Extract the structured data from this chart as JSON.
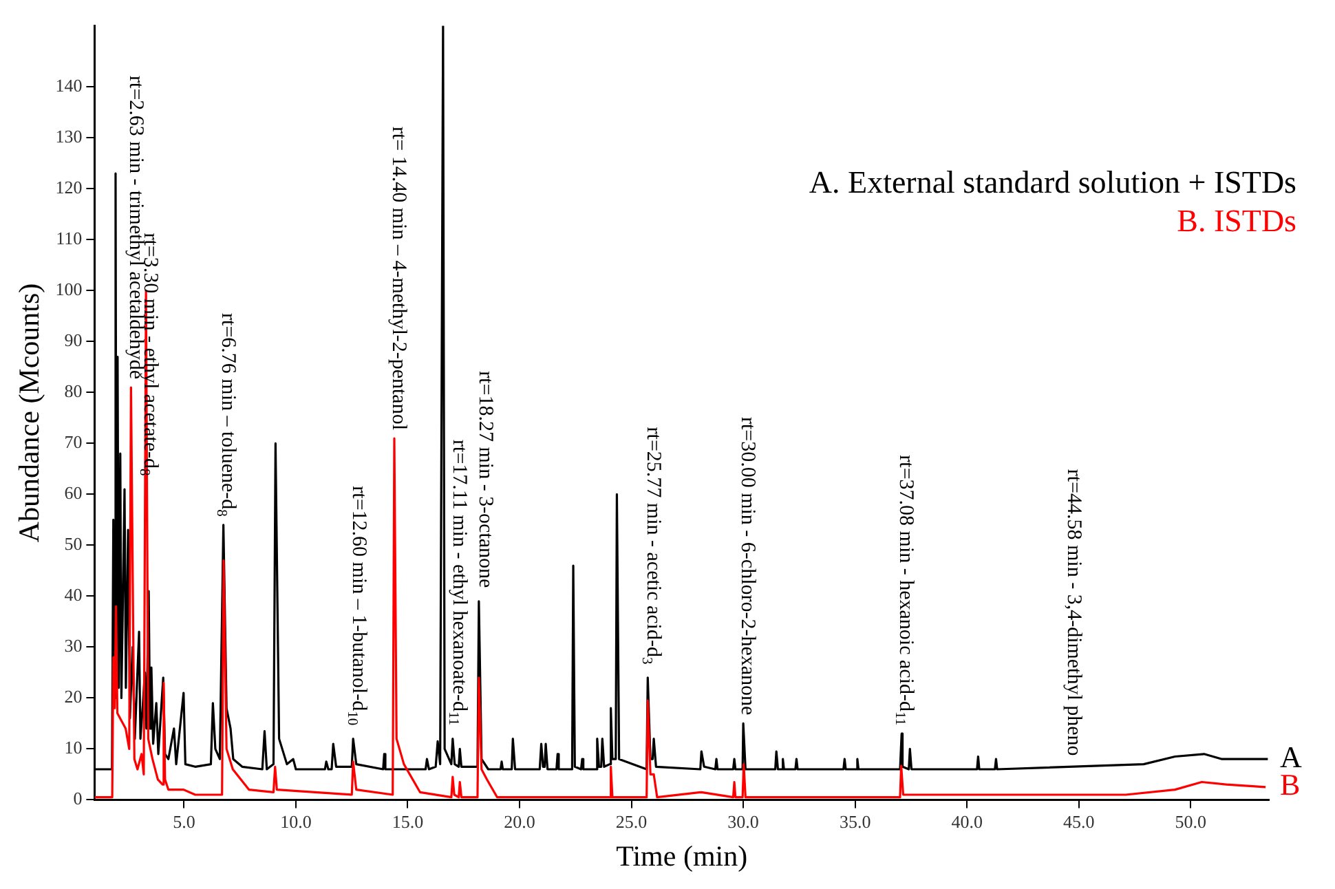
{
  "chart_data": {
    "type": "line",
    "xlabel": "Time (min)",
    "ylabel": "Abundance (Mcounts)",
    "xlim": [
      1.0,
      53.5
    ],
    "xticks": [
      {
        "value": 5,
        "label": "5.0"
      },
      {
        "value": 10,
        "label": "10.0"
      },
      {
        "value": 15,
        "label": "15.0"
      },
      {
        "value": 20,
        "label": "20.0"
      },
      {
        "value": 25,
        "label": "25.0"
      },
      {
        "value": 30,
        "label": "30.0"
      },
      {
        "value": 35,
        "label": "35.0"
      },
      {
        "value": 40,
        "label": "40.0"
      },
      {
        "value": 45,
        "label": "45.0"
      },
      {
        "value": 50,
        "label": "50.0"
      }
    ],
    "ylim": [
      0,
      152
    ],
    "yticks": [
      0,
      10,
      20,
      30,
      40,
      50,
      60,
      70,
      80,
      90,
      100,
      110,
      120,
      130,
      140
    ],
    "grid": false,
    "legend": "top right",
    "marker": "none",
    "line_style": "solid",
    "series": [
      {
        "name": "A. External standard solution + ISTDs",
        "color": "#000000",
        "x": [
          1.0,
          1.78,
          1.84,
          1.88,
          1.94,
          1.98,
          2.03,
          2.08,
          2.15,
          2.2,
          2.34,
          2.4,
          2.5,
          2.58,
          2.7,
          2.8,
          2.99,
          3.05,
          3.15,
          3.25,
          3.32,
          3.42,
          3.48,
          3.54,
          3.62,
          3.76,
          3.85,
          4.07,
          4.15,
          4.3,
          4.55,
          4.65,
          4.98,
          5.06,
          5.5,
          6.2,
          6.29,
          6.4,
          6.6,
          6.76,
          6.9,
          7.08,
          7.2,
          7.6,
          8.5,
          8.6,
          8.7,
          9.0,
          9.09,
          9.25,
          9.6,
          9.88,
          10.0,
          11.3,
          11.36,
          11.45,
          11.6,
          11.67,
          11.8,
          12.5,
          12.56,
          12.7,
          13.9,
          13.95,
          14.0,
          15.8,
          15.86,
          15.95,
          16.25,
          16.34,
          16.45,
          16.58,
          16.65,
          16.95,
          17.01,
          17.1,
          17.28,
          17.33,
          17.4,
          18.12,
          18.18,
          18.3,
          18.6,
          19.15,
          19.2,
          19.25,
          19.65,
          19.7,
          19.8,
          20.9,
          20.97,
          21.05,
          21.12,
          21.17,
          21.25,
          21.65,
          21.7,
          21.75,
          22.35,
          22.4,
          22.47,
          22.75,
          22.8,
          22.85,
          23.42,
          23.47,
          23.55,
          23.65,
          23.7,
          23.78,
          24.03,
          24.08,
          24.15,
          24.3,
          24.35,
          24.45,
          25.68,
          25.73,
          25.85,
          25.95,
          26.0,
          26.1,
          28.08,
          28.13,
          28.25,
          28.75,
          28.8,
          28.85,
          29.55,
          29.6,
          29.65,
          29.97,
          30.0,
          30.1,
          31.43,
          31.48,
          31.55,
          31.72,
          31.77,
          31.82,
          32.33,
          32.38,
          32.43,
          34.48,
          34.53,
          34.58,
          35.05,
          35.1,
          35.15,
          37.01,
          37.08,
          37.12,
          37.4,
          37.45,
          37.52,
          40.45,
          40.5,
          40.55,
          41.25,
          41.3,
          41.35,
          47.9,
          49.3,
          50.6,
          51.4,
          53.45
        ],
        "values": [
          6,
          6,
          55,
          20,
          123,
          25,
          87,
          22,
          68,
          20,
          61,
          22,
          53,
          16,
          30,
          12,
          33,
          12,
          18,
          25,
          14,
          41,
          14,
          26,
          11,
          19,
          9,
          24,
          9,
          8,
          14,
          7,
          21,
          7,
          6.5,
          7,
          19,
          10,
          8,
          54,
          18,
          14,
          8,
          6.5,
          6,
          13.5,
          6,
          7,
          70,
          12,
          7,
          8,
          6,
          6,
          7.5,
          6,
          6,
          11,
          6.5,
          6.5,
          12,
          7,
          6,
          9,
          6,
          6,
          8,
          6,
          6.5,
          11.5,
          7,
          152,
          10,
          7,
          12,
          7,
          6.5,
          10,
          6.5,
          6.5,
          39,
          8,
          6,
          6,
          7.5,
          6,
          6,
          12,
          6,
          6,
          11,
          6.5,
          6.5,
          11,
          6,
          6,
          9,
          6,
          6,
          46,
          6.5,
          6,
          8,
          6,
          6,
          12,
          6.5,
          6.5,
          12,
          6.5,
          7,
          18,
          8,
          8,
          60,
          8,
          6,
          24,
          8,
          8,
          12,
          6.5,
          6,
          9.5,
          6.5,
          6,
          8,
          6,
          6,
          8,
          6,
          6,
          15,
          6,
          6,
          9.5,
          6,
          6,
          8,
          6,
          6,
          8,
          6,
          6,
          8,
          6,
          6,
          8,
          6,
          6,
          13,
          6.5,
          6,
          10,
          6,
          6,
          8.5,
          6,
          6,
          8,
          6,
          7,
          8.5,
          9,
          8,
          8
        ]
      },
      {
        "name": "B. ISTDs",
        "color": "#ff0000",
        "x": [
          1.0,
          1.79,
          1.84,
          1.9,
          1.96,
          2.02,
          2.39,
          2.55,
          2.63,
          2.78,
          2.92,
          3.1,
          3.2,
          3.3,
          3.4,
          3.59,
          3.83,
          4.04,
          4.09,
          4.15,
          4.3,
          4.98,
          5.5,
          6.7,
          6.77,
          6.9,
          7.18,
          7.9,
          9.0,
          9.07,
          9.15,
          12.5,
          12.56,
          12.7,
          14.33,
          14.4,
          14.5,
          14.83,
          15.55,
          16.95,
          17.01,
          17.08,
          17.28,
          17.33,
          17.4,
          18.12,
          18.18,
          18.3,
          18.54,
          19.0,
          24.03,
          24.08,
          24.15,
          25.68,
          25.73,
          25.85,
          26.0,
          26.15,
          28.13,
          29.55,
          29.6,
          29.65,
          29.97,
          30.02,
          30.1,
          37.01,
          37.06,
          37.15,
          47.1,
          49.3,
          50.5,
          51.6,
          53.35
        ],
        "values": [
          0.5,
          0.5,
          28,
          18,
          38,
          17,
          14,
          10,
          81,
          8,
          6,
          9,
          5,
          100,
          12,
          8,
          4,
          3,
          23,
          4,
          2,
          2,
          1,
          1,
          47,
          10,
          6,
          2,
          1.5,
          6.5,
          2,
          1,
          7.5,
          2,
          1,
          71,
          12,
          7,
          1.5,
          0.5,
          4.5,
          1,
          0.5,
          3.5,
          0.5,
          0.5,
          24,
          6,
          4,
          0.5,
          0.5,
          6.5,
          0.5,
          0.5,
          19.5,
          5,
          5,
          0.5,
          1.5,
          0.5,
          3.5,
          0.5,
          0.5,
          7,
          0.5,
          0.5,
          6.7,
          1,
          1,
          2,
          3.5,
          3,
          2.5
        ]
      }
    ],
    "annotations": [
      {
        "text": "rt=2.63 min - trimethyl acetaldehyde",
        "x": 2.63,
        "y": 81
      },
      {
        "text": "rt=3.30 min - ethyl acetate-d$_{8}$",
        "x": 3.3,
        "y": 62
      },
      {
        "text": "rt=6.76 min – toluene-d$_{8}$",
        "x": 6.76,
        "y": 54
      },
      {
        "text": "rt=12.60 min – 1-butanol-d$_{10}$",
        "x": 12.6,
        "y": 13
      },
      {
        "text": "rt= 14.40 min – 4-methyl-2-pentanol",
        "x": 14.4,
        "y": 71
      },
      {
        "text": "rt=17.11 min - ethyl hexanoate-d$_{11}$",
        "x": 17.11,
        "y": 13
      },
      {
        "text": "rt=18.27 min - 3-octanone",
        "x": 18.27,
        "y": 40
      },
      {
        "text": "rt=25.77 min - acetic acid-d$_{3}$",
        "x": 25.77,
        "y": 25
      },
      {
        "text": "rt=30.00 min - 6-chloro-2-hexanone",
        "x": 30.0,
        "y": 15
      },
      {
        "text": "rt=37.08 min - hexanoic acid-d$_{11}$",
        "x": 37.08,
        "y": 13
      },
      {
        "text": "rt=44.58 min - 3,4-dimethyl pheno",
        "x": 44.58,
        "y": 7
      },
      {
        "text": "A",
        "x": 53.5,
        "y": 8
      },
      {
        "text": "B",
        "x": 53.5,
        "y": 2.5
      }
    ]
  }
}
